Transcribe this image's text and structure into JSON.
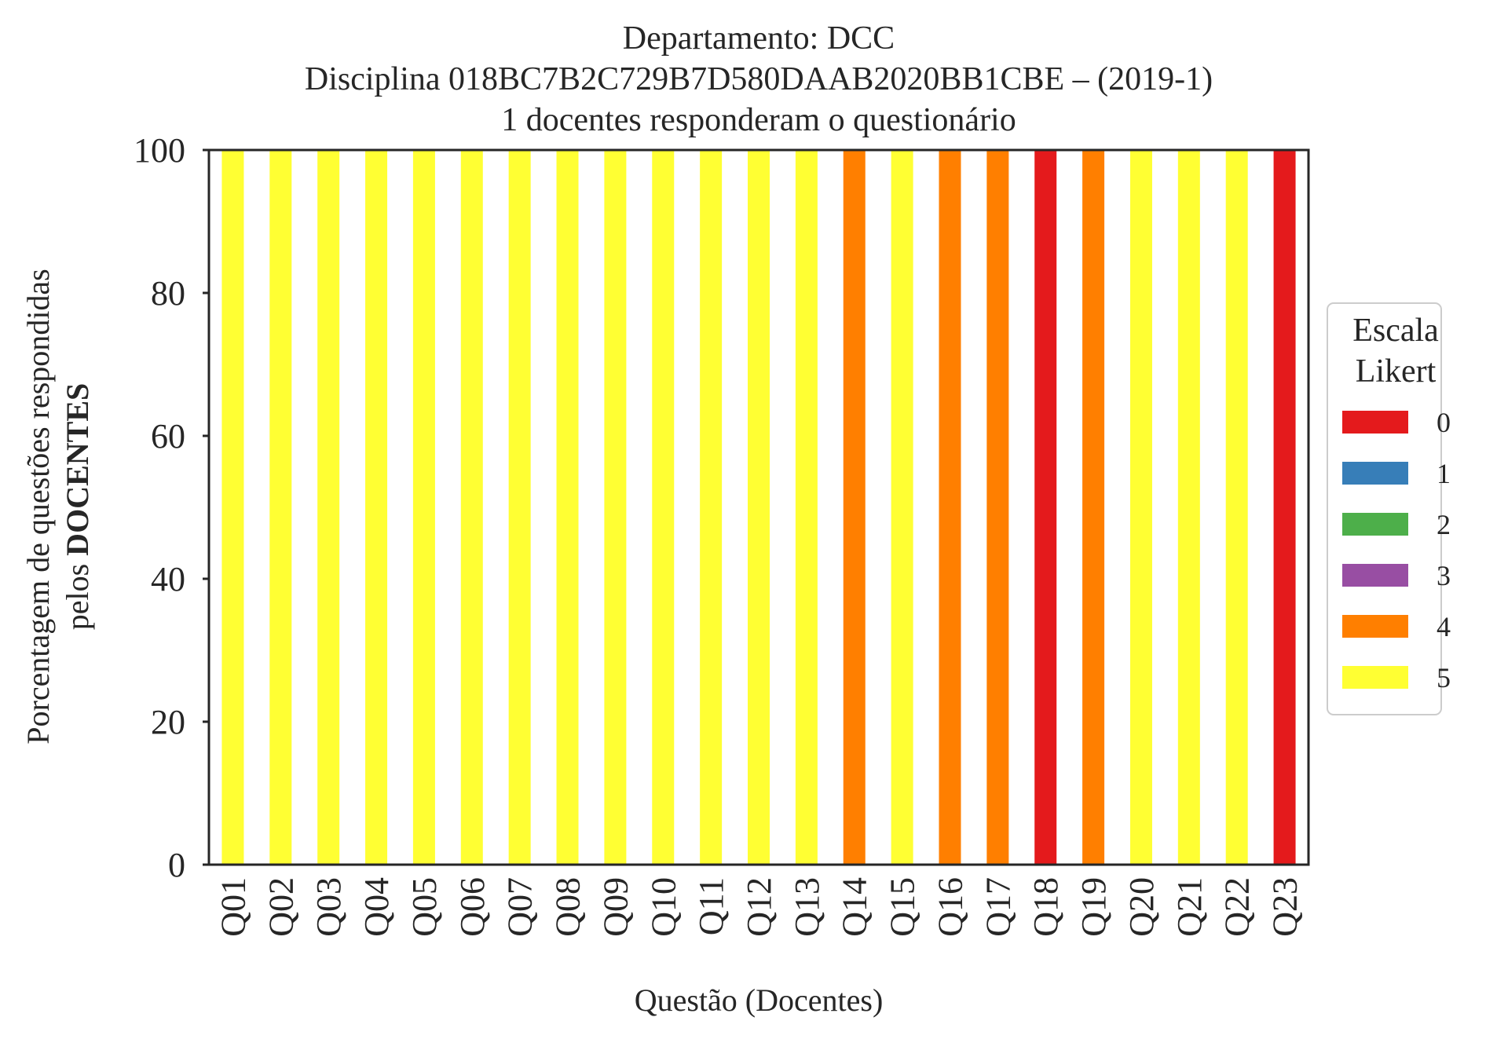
{
  "chart_data": {
    "type": "bar",
    "stacked": true,
    "title": [
      "Departamento: DCC",
      "Disciplina 018BC7B2C729B7D580DAAB2020BB1CBE – (2019-1)",
      "1 docentes responderam o questionário"
    ],
    "xlabel": "Questão (Docentes)",
    "ylabel_line1": "Porcentagem de questões respondidas",
    "ylabel_line2_prefix": "pelos ",
    "ylabel_line2_bold": "DOCENTES",
    "ylim": [
      0,
      100
    ],
    "yticks": [
      0,
      20,
      40,
      60,
      80,
      100
    ],
    "grid": false,
    "categories": [
      "Q01",
      "Q02",
      "Q03",
      "Q04",
      "Q05",
      "Q06",
      "Q07",
      "Q08",
      "Q09",
      "Q10",
      "Q11",
      "Q12",
      "Q13",
      "Q14",
      "Q15",
      "Q16",
      "Q17",
      "Q18",
      "Q19",
      "Q20",
      "Q21",
      "Q22",
      "Q23"
    ],
    "series": [
      {
        "name": "0",
        "color": "#e41a1c",
        "values": [
          0,
          0,
          0,
          0,
          0,
          0,
          0,
          0,
          0,
          0,
          0,
          0,
          0,
          0,
          0,
          0,
          0,
          100,
          0,
          0,
          0,
          0,
          100
        ]
      },
      {
        "name": "1",
        "color": "#377eb8",
        "values": [
          0,
          0,
          0,
          0,
          0,
          0,
          0,
          0,
          0,
          0,
          0,
          0,
          0,
          0,
          0,
          0,
          0,
          0,
          0,
          0,
          0,
          0,
          0
        ]
      },
      {
        "name": "2",
        "color": "#4daf4a",
        "values": [
          0,
          0,
          0,
          0,
          0,
          0,
          0,
          0,
          0,
          0,
          0,
          0,
          0,
          0,
          0,
          0,
          0,
          0,
          0,
          0,
          0,
          0,
          0
        ]
      },
      {
        "name": "3",
        "color": "#984ea3",
        "values": [
          0,
          0,
          0,
          0,
          0,
          0,
          0,
          0,
          0,
          0,
          0,
          0,
          0,
          0,
          0,
          0,
          0,
          0,
          0,
          0,
          0,
          0,
          0
        ]
      },
      {
        "name": "4",
        "color": "#ff7f00",
        "values": [
          0,
          0,
          0,
          0,
          0,
          0,
          0,
          0,
          0,
          0,
          0,
          0,
          0,
          100,
          0,
          100,
          100,
          0,
          100,
          0,
          0,
          0,
          0
        ]
      },
      {
        "name": "5",
        "color": "#ffff33",
        "values": [
          100,
          100,
          100,
          100,
          100,
          100,
          100,
          100,
          100,
          100,
          100,
          100,
          100,
          0,
          100,
          0,
          0,
          0,
          0,
          100,
          100,
          100,
          0
        ]
      }
    ],
    "legend": {
      "title": [
        "Escala",
        "Likert"
      ],
      "placement": "center-right, outside plot"
    }
  }
}
